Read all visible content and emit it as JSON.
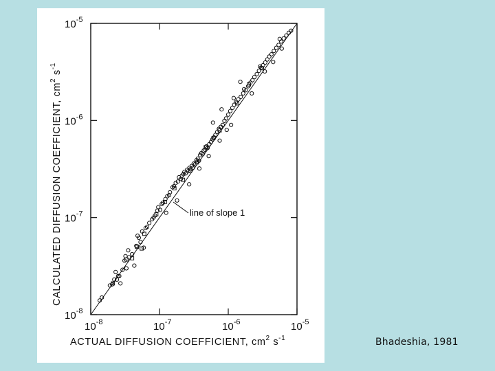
{
  "slide": {
    "citation": "Bhadeshia, 1981",
    "background_color": "#b7dfe3"
  },
  "chart_data": {
    "type": "scatter",
    "x_scale": "log",
    "y_scale": "log",
    "xlim": [
      1e-08,
      1e-05
    ],
    "ylim": [
      1e-08,
      1e-05
    ],
    "x_ticks": [
      {
        "base": "10",
        "exp": "-8"
      },
      {
        "base": "10",
        "exp": "-7"
      },
      {
        "base": "10",
        "exp": "-6"
      },
      {
        "base": "10",
        "exp": "-5"
      }
    ],
    "y_ticks": [
      {
        "base": "10",
        "exp": "-8"
      },
      {
        "base": "10",
        "exp": "-7"
      },
      {
        "base": "10",
        "exp": "-6"
      },
      {
        "base": "10",
        "exp": "-5"
      }
    ],
    "xlabel": {
      "main": "ACTUAL DIFFUSION COEFFICIENT, cm",
      "sup1": "2",
      "mid": " s",
      "sup2": "-1"
    },
    "ylabel": {
      "main": "CALCULATED DIFFUSION COEFFICIENT, cm",
      "sup1": "2",
      "mid": " s",
      "sup2": "-1"
    },
    "reference_line": {
      "label": "line of slope 1",
      "slope": 1
    },
    "grid": false,
    "series": [
      {
        "marker": "circle",
        "points": [
          [
            1.35e-08,
            1.4e-08
          ],
          [
            1.45e-08,
            1.5e-08
          ],
          [
            1.9e-08,
            2e-08
          ],
          [
            2.05e-08,
            2.05e-08
          ],
          [
            2.2e-08,
            2.3e-08
          ],
          [
            2.4e-08,
            2.3e-08
          ],
          [
            2.5e-08,
            2.5e-08
          ],
          [
            2.6e-08,
            2.5e-08
          ],
          [
            2.7e-08,
            2.1e-08
          ],
          [
            2.9e-08,
            2.9e-08
          ],
          [
            3.1e-08,
            3.6e-08
          ],
          [
            3.3e-08,
            3e-08
          ],
          [
            3.5e-08,
            4.6e-08
          ],
          [
            3.6e-08,
            3.9e-08
          ],
          [
            4e-08,
            4.2e-08
          ],
          [
            4.3e-08,
            3.2e-08
          ],
          [
            4.6e-08,
            5.1e-08
          ],
          [
            5e-08,
            6.2e-08
          ],
          [
            5.3e-08,
            5.6e-08
          ],
          [
            5.6e-08,
            7.2e-08
          ],
          [
            5.9e-08,
            4.9e-08
          ],
          [
            6.3e-08,
            7.8e-08
          ],
          [
            6.6e-08,
            8e-08
          ],
          [
            7.1e-08,
            8.8e-08
          ],
          [
            7.8e-08,
            9.6e-08
          ],
          [
            8.2e-08,
            1e-07
          ],
          [
            8.6e-08,
            1.05e-07
          ],
          [
            9.3e-08,
            1.18e-07
          ],
          [
            9.6e-08,
            1.28e-07
          ],
          [
            1.02e-07,
            1.2e-07
          ],
          [
            1.08e-07,
            1.38e-07
          ],
          [
            1.12e-07,
            1.42e-07
          ],
          [
            1.22e-07,
            1.55e-07
          ],
          [
            1.3e-07,
            1.66e-07
          ],
          [
            1.38e-07,
            1.7e-07
          ],
          [
            1.42e-07,
            1.82e-07
          ],
          [
            1.55e-07,
            2.05e-07
          ],
          [
            1.62e-07,
            2.1e-07
          ],
          [
            1.72e-07,
            2.27e-07
          ],
          [
            1.85e-07,
            2.35e-07
          ],
          [
            1.92e-07,
            2.6e-07
          ],
          [
            2.05e-07,
            2.5e-07
          ],
          [
            2.12e-07,
            2.7e-07
          ],
          [
            2.22e-07,
            2.8e-07
          ],
          [
            2.3e-07,
            2.95e-07
          ],
          [
            2.4e-07,
            2.85e-07
          ],
          [
            2.52e-07,
            3.1e-07
          ],
          [
            2.62e-07,
            3e-07
          ],
          [
            2.72e-07,
            3.25e-07
          ],
          [
            2.82e-07,
            3.15e-07
          ],
          [
            2.95e-07,
            3.4e-07
          ],
          [
            3.05e-07,
            3.25e-07
          ],
          [
            3.15e-07,
            3.6e-07
          ],
          [
            3.3e-07,
            3.55e-07
          ],
          [
            3.45e-07,
            3.9e-07
          ],
          [
            3.6e-07,
            4.05e-07
          ],
          [
            3.75e-07,
            3.85e-07
          ],
          [
            3.9e-07,
            4.4e-07
          ],
          [
            4.05e-07,
            4.6e-07
          ],
          [
            4.25e-07,
            4.5e-07
          ],
          [
            4.4e-07,
            4.9e-07
          ],
          [
            4.6e-07,
            5e-07
          ],
          [
            4.8e-07,
            5.4e-07
          ],
          [
            5e-07,
            5.2e-07
          ],
          [
            5.3e-07,
            5.7e-07
          ],
          [
            5.6e-07,
            6e-07
          ],
          [
            5.9e-07,
            6.4e-07
          ],
          [
            6.2e-07,
            6.7e-07
          ],
          [
            6.5e-07,
            7.1e-07
          ],
          [
            6.9e-07,
            7.6e-07
          ],
          [
            7.3e-07,
            8.2e-07
          ],
          [
            7.8e-07,
            8.6e-07
          ],
          [
            8.3e-07,
            9e-07
          ],
          [
            8.8e-07,
            9.9e-07
          ],
          [
            9.3e-07,
            1.05e-06
          ],
          [
            1e-06,
            1.15e-06
          ],
          [
            1.07e-06,
            1.25e-06
          ],
          [
            1.15e-06,
            1.35e-06
          ],
          [
            1.22e-06,
            1.45e-06
          ],
          [
            1.3e-06,
            1.55e-06
          ],
          [
            1.4e-06,
            1.65e-06
          ],
          [
            1.52e-06,
            1.75e-06
          ],
          [
            1.65e-06,
            1.9e-06
          ],
          [
            1.8e-06,
            2.05e-06
          ],
          [
            1.95e-06,
            2.25e-06
          ],
          [
            2.1e-06,
            2.45e-06
          ],
          [
            2.25e-06,
            2.6e-06
          ],
          [
            2.4e-06,
            2.8e-06
          ],
          [
            2.6e-06,
            3e-06
          ],
          [
            2.8e-06,
            3.25e-06
          ],
          [
            3e-06,
            3.5e-06
          ],
          [
            3.2e-06,
            3.7e-06
          ],
          [
            3.45e-06,
            3.95e-06
          ],
          [
            3.7e-06,
            4.25e-06
          ],
          [
            3.95e-06,
            4.55e-06
          ],
          [
            4.25e-06,
            4.8e-06
          ],
          [
            4.6e-06,
            5.2e-06
          ],
          [
            5e-06,
            5.6e-06
          ],
          [
            5.4e-06,
            6e-06
          ],
          [
            5.9e-06,
            6.5e-06
          ],
          [
            6.4e-06,
            7e-06
          ],
          [
            7e-06,
            7.5e-06
          ],
          [
            7.6e-06,
            8e-06
          ],
          [
            8.2e-06,
            8.4e-06
          ],
          [
            1.5e-06,
            2.5e-06
          ],
          [
            1.2e-06,
            1.7e-06
          ],
          [
            8e-07,
            1.3e-06
          ],
          [
            6e-07,
            9.5e-07
          ],
          [
            9.5e-07,
            8e-07
          ],
          [
            7.5e-07,
            6.2e-07
          ],
          [
            1.1e-06,
            9e-07
          ],
          [
            2.2e-06,
            1.9e-06
          ],
          [
            3.4e-06,
            3.2e-06
          ],
          [
            4.5e-06,
            4e-06
          ],
          [
            6e-06,
            5.5e-06
          ],
          [
            2.7e-07,
            2.2e-07
          ],
          [
            3.8e-07,
            3.2e-07
          ],
          [
            5.2e-07,
            4.3e-07
          ],
          [
            1.8e-07,
            1.5e-07
          ],
          [
            1.25e-07,
            1.12e-07
          ],
          [
            4.8e-08,
            6.5e-08
          ],
          [
            3.2e-08,
            4e-08
          ],
          [
            2.3e-08,
            2.75e-08
          ],
          [
            1.7e-06,
            2.1e-06
          ],
          [
            2.9e-06,
            3.6e-06
          ],
          [
            5.6e-06,
            6.9e-06
          ]
        ]
      },
      {
        "marker": "square",
        "points": [
          [
            2.1e-08,
            2.1e-08
          ],
          [
            3.3e-08,
            3.7e-08
          ],
          [
            4e-08,
            3.8e-08
          ],
          [
            4.7e-08,
            5e-08
          ],
          [
            5.5e-08,
            4.8e-08
          ],
          [
            6e-08,
            6.8e-08
          ],
          [
            9e-08,
            1.08e-07
          ],
          [
            1.2e-07,
            1.45e-07
          ],
          [
            1.65e-07,
            2e-07
          ],
          [
            2.2e-07,
            2.45e-07
          ],
          [
            2.8e-07,
            3.05e-07
          ],
          [
            3.5e-07,
            3.7e-07
          ],
          [
            4.7e-07,
            5.3e-07
          ],
          [
            6.1e-07,
            6.6e-07
          ],
          [
            7.5e-07,
            7.9e-07
          ],
          [
            1.35e-06,
            1.5e-06
          ],
          [
            2e-06,
            2.35e-06
          ],
          [
            3.1e-06,
            3.45e-06
          ]
        ]
      }
    ]
  }
}
